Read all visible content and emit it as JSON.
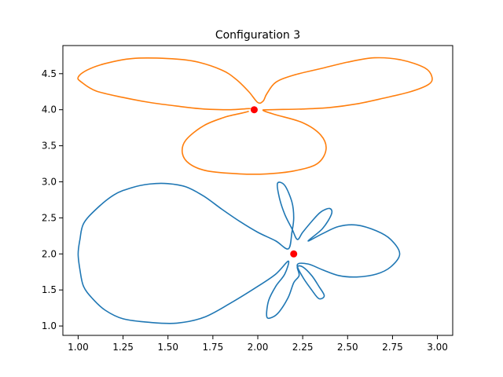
{
  "chart_data": {
    "type": "line",
    "title": "Configuration 3",
    "xlabel": "",
    "ylabel": "",
    "xlim": [
      0.915,
      3.085
    ],
    "ylim": [
      0.87,
      4.89
    ],
    "grid": false,
    "xticks": [
      1.0,
      1.25,
      1.5,
      1.75,
      2.0,
      2.25,
      2.5,
      2.75,
      3.0
    ],
    "xtick_labels": [
      "1.00",
      "1.25",
      "1.50",
      "1.75",
      "2.00",
      "2.25",
      "2.50",
      "2.75",
      "3.00"
    ],
    "yticks": [
      1.0,
      1.5,
      2.0,
      2.5,
      3.0,
      3.5,
      4.0,
      4.5
    ],
    "ytick_labels": [
      "1.0",
      "1.5",
      "2.0",
      "2.5",
      "3.0",
      "3.5",
      "4.0",
      "4.5"
    ],
    "series": [
      {
        "color": "#1f77b4",
        "points": [
          [
            2.17,
            2.07
          ],
          [
            2.1,
            2.18
          ],
          [
            2.0,
            2.3
          ],
          [
            1.9,
            2.45
          ],
          [
            1.8,
            2.62
          ],
          [
            1.7,
            2.8
          ],
          [
            1.6,
            2.93
          ],
          [
            1.5,
            2.975
          ],
          [
            1.4,
            2.97
          ],
          [
            1.3,
            2.92
          ],
          [
            1.2,
            2.82
          ],
          [
            1.1,
            2.62
          ],
          [
            1.03,
            2.42
          ],
          [
            1.01,
            2.2
          ],
          [
            1.0,
            2.0
          ],
          [
            1.01,
            1.78
          ],
          [
            1.03,
            1.55
          ],
          [
            1.08,
            1.38
          ],
          [
            1.15,
            1.22
          ],
          [
            1.25,
            1.1
          ],
          [
            1.4,
            1.05
          ],
          [
            1.55,
            1.04
          ],
          [
            1.7,
            1.12
          ],
          [
            1.85,
            1.32
          ],
          [
            2.0,
            1.55
          ],
          [
            2.1,
            1.72
          ],
          [
            2.17,
            1.9
          ],
          [
            2.15,
            1.72
          ],
          [
            2.1,
            1.55
          ],
          [
            2.06,
            1.35
          ],
          [
            2.05,
            1.13
          ],
          [
            2.08,
            1.12
          ],
          [
            2.12,
            1.2
          ],
          [
            2.17,
            1.4
          ],
          [
            2.2,
            1.6
          ],
          [
            2.23,
            1.7
          ],
          [
            2.22,
            1.82
          ],
          [
            2.25,
            1.82
          ],
          [
            2.3,
            1.7
          ],
          [
            2.34,
            1.55
          ],
          [
            2.37,
            1.42
          ],
          [
            2.34,
            1.38
          ],
          [
            2.3,
            1.5
          ],
          [
            2.25,
            1.68
          ],
          [
            2.22,
            1.85
          ],
          [
            2.28,
            1.86
          ],
          [
            2.36,
            1.78
          ],
          [
            2.45,
            1.7
          ],
          [
            2.55,
            1.68
          ],
          [
            2.66,
            1.72
          ],
          [
            2.74,
            1.82
          ],
          [
            2.79,
            2.0
          ],
          [
            2.74,
            2.2
          ],
          [
            2.66,
            2.32
          ],
          [
            2.55,
            2.4
          ],
          [
            2.45,
            2.38
          ],
          [
            2.36,
            2.28
          ],
          [
            2.28,
            2.18
          ],
          [
            2.36,
            2.35
          ],
          [
            2.41,
            2.55
          ],
          [
            2.4,
            2.63
          ],
          [
            2.35,
            2.58
          ],
          [
            2.3,
            2.45
          ],
          [
            2.25,
            2.3
          ],
          [
            2.22,
            2.2
          ],
          [
            2.19,
            2.35
          ],
          [
            2.15,
            2.55
          ],
          [
            2.12,
            2.78
          ],
          [
            2.11,
            2.98
          ],
          [
            2.15,
            2.95
          ],
          [
            2.19,
            2.72
          ],
          [
            2.2,
            2.5
          ],
          [
            2.19,
            2.3
          ],
          [
            2.17,
            2.07
          ]
        ]
      },
      {
        "color": "#ff7f0e",
        "points": [
          [
            1.96,
            4.01
          ],
          [
            1.85,
            4.0
          ],
          [
            1.7,
            4.01
          ],
          [
            1.55,
            4.05
          ],
          [
            1.4,
            4.1
          ],
          [
            1.25,
            4.17
          ],
          [
            1.1,
            4.26
          ],
          [
            1.02,
            4.38
          ],
          [
            1.0,
            4.45
          ],
          [
            1.05,
            4.55
          ],
          [
            1.15,
            4.64
          ],
          [
            1.3,
            4.71
          ],
          [
            1.5,
            4.71
          ],
          [
            1.65,
            4.67
          ],
          [
            1.8,
            4.55
          ],
          [
            1.88,
            4.42
          ],
          [
            1.95,
            4.25
          ],
          [
            2.0,
            4.1
          ],
          [
            2.03,
            4.12
          ],
          [
            2.05,
            4.22
          ],
          [
            2.1,
            4.38
          ],
          [
            2.2,
            4.48
          ],
          [
            2.35,
            4.57
          ],
          [
            2.5,
            4.66
          ],
          [
            2.65,
            4.72
          ],
          [
            2.8,
            4.69
          ],
          [
            2.93,
            4.58
          ],
          [
            2.97,
            4.45
          ],
          [
            2.95,
            4.35
          ],
          [
            2.85,
            4.25
          ],
          [
            2.7,
            4.16
          ],
          [
            2.55,
            4.08
          ],
          [
            2.4,
            4.03
          ],
          [
            2.25,
            4.01
          ],
          [
            2.07,
            4.0
          ],
          [
            2.03,
            3.99
          ],
          [
            2.1,
            3.93
          ],
          [
            2.25,
            3.82
          ],
          [
            2.35,
            3.65
          ],
          [
            2.38,
            3.45
          ],
          [
            2.33,
            3.25
          ],
          [
            2.2,
            3.15
          ],
          [
            2.05,
            3.11
          ],
          [
            1.9,
            3.11
          ],
          [
            1.72,
            3.15
          ],
          [
            1.62,
            3.25
          ],
          [
            1.58,
            3.4
          ],
          [
            1.6,
            3.58
          ],
          [
            1.7,
            3.78
          ],
          [
            1.82,
            3.9
          ],
          [
            1.95,
            3.98
          ]
        ]
      }
    ],
    "markers": [
      {
        "x": 2.2,
        "y": 2.0,
        "color": "#ff0000"
      },
      {
        "x": 1.98,
        "y": 4.0,
        "color": "#ff0000"
      }
    ]
  }
}
